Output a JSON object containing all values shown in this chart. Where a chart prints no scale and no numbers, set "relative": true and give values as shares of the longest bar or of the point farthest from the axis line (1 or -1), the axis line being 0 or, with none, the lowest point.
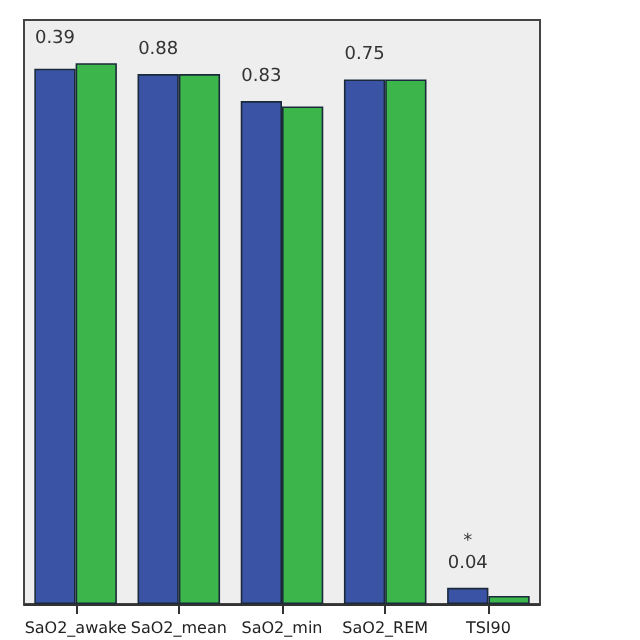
{
  "chart_data": {
    "type": "bar",
    "relative": true,
    "categories": [
      "SaO2_awake",
      "SaO2_mean",
      "SaO2_min",
      "SaO2_REM",
      "TSI90"
    ],
    "series": [
      {
        "color": "#3a53a4",
        "values": [
          0.99,
          0.98,
          0.93,
          0.97,
          0.03
        ]
      },
      {
        "color": "#3cb64a",
        "values": [
          1,
          0.98,
          0.92,
          0.97,
          0.015
        ]
      }
    ],
    "annotations": [
      "0.39",
      "0.88",
      "0.83",
      "0.75",
      "*\n0.04"
    ]
  }
}
